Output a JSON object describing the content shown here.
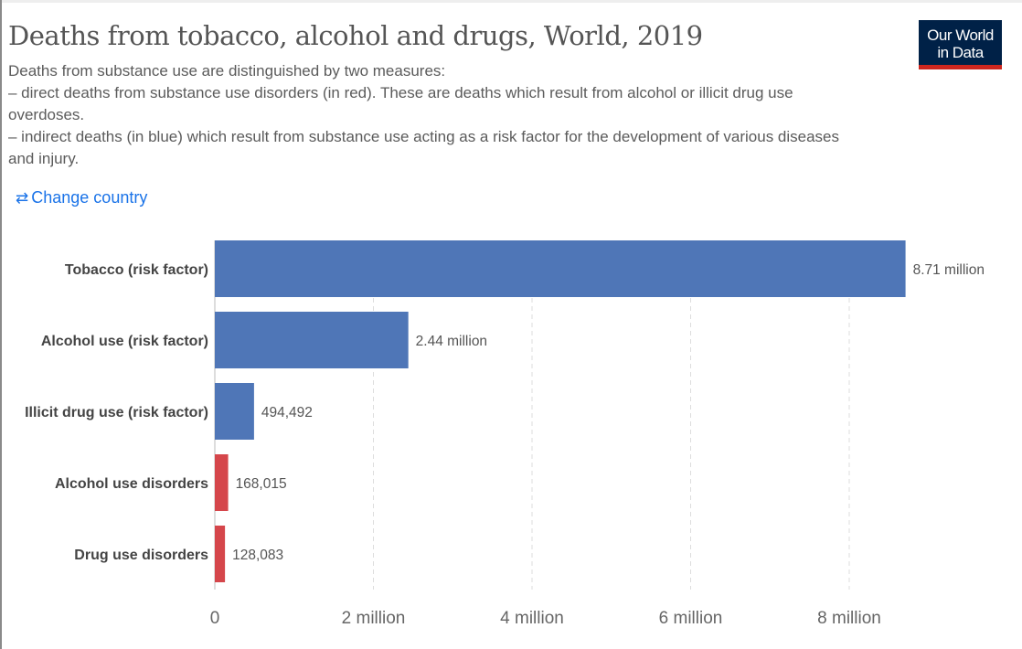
{
  "header": {
    "title": "Deaths from tobacco, alcohol and drugs, World, 2019",
    "subtitle_lines": [
      "Deaths from substance use are distinguished by two measures:",
      "– direct deaths from substance use disorders (in red). These are deaths which result from alcohol or illicit drug use overdoses.",
      "– indirect deaths (in blue) which result from substance use acting as a risk factor for the development of various diseases and injury."
    ],
    "logo_line1": "Our World",
    "logo_line2": "in Data",
    "change_country": "Change country",
    "change_icon": "swap-arrows-icon"
  },
  "colors": {
    "blue": "#4f76b7",
    "red": "#d5464b",
    "logo_bg": "#002147",
    "logo_bar": "#ce261e",
    "link": "#1a73e8"
  },
  "chart_data": {
    "type": "bar",
    "orientation": "horizontal",
    "categories": [
      "Tobacco (risk factor)",
      "Alcohol use (risk factor)",
      "Illicit drug use (risk factor)",
      "Alcohol use disorders",
      "Drug use disorders"
    ],
    "values": [
      8710000,
      2440000,
      494492,
      168015,
      128083
    ],
    "value_labels": [
      "8.71 million",
      "2.44 million",
      "494,492",
      "168,015",
      "128,083"
    ],
    "bar_colors": [
      "#4f76b7",
      "#4f76b7",
      "#4f76b7",
      "#d5464b",
      "#d5464b"
    ],
    "xlim": [
      0,
      8710000
    ],
    "xticks": [
      0,
      2000000,
      4000000,
      6000000,
      8000000
    ],
    "xtick_labels": [
      "0",
      "2 million",
      "4 million",
      "6 million",
      "8 million"
    ],
    "grid": "vertical dashed",
    "title": "Deaths from tobacco, alcohol and drugs, World, 2019"
  }
}
